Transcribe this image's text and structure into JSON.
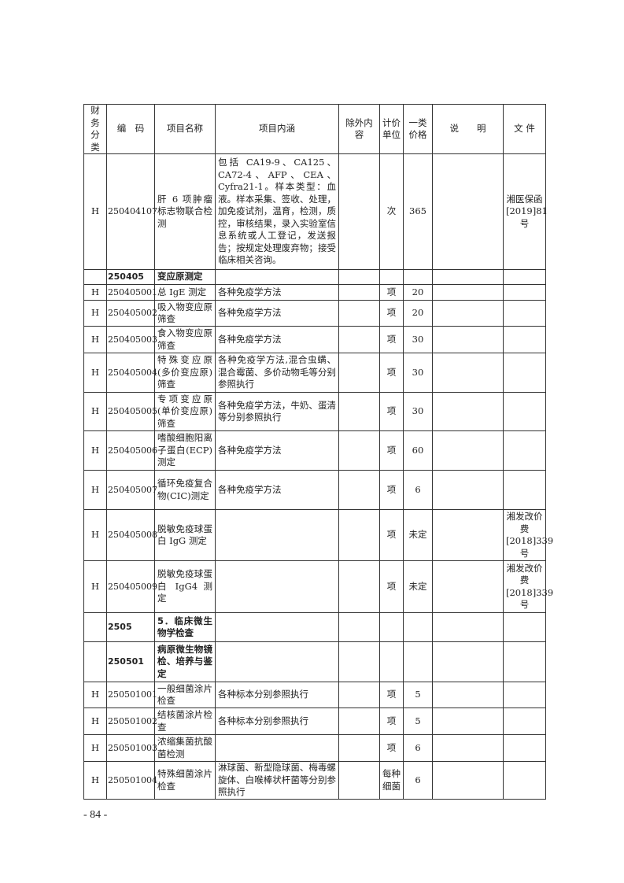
{
  "headers": [
    "财务分类",
    "编　码",
    "项目名称",
    "项目内涵",
    "除外内容",
    "计价单位",
    "一类价格",
    "说　　明",
    "文 件"
  ],
  "rows": [
    {
      "cat": "H",
      "code": "250404107",
      "name": "肝 6 项肿瘤标志物联合检测",
      "content": "包括 CA19-9、CA125、CA72-4、AFP、CEA、Cyfra21-1。样本类型：血液。样本采集、签收、处理，加免疫试剂，温育，检测，质控，审核结果，录入实验室信息系统或人工登记，发送报告；按规定处理废弃物；接受临床相关咨询。",
      "excl": "",
      "unit": "次",
      "price": "365",
      "note": "",
      "doc": "湘医保函[2019]81号"
    },
    {
      "cat": "",
      "code": "250405",
      "name": "变应原测定",
      "content": "",
      "excl": "",
      "unit": "",
      "price": "",
      "note": "",
      "doc": "",
      "bold": true
    },
    {
      "cat": "H",
      "code": "250405001",
      "name": "总 IgE 测定",
      "content": "各种免疫学方法",
      "excl": "",
      "unit": "项",
      "price": "20",
      "note": "",
      "doc": ""
    },
    {
      "cat": "H",
      "code": "250405002",
      "name": "吸入物变应原筛查",
      "content": "各种免疫学方法",
      "excl": "",
      "unit": "项",
      "price": "20",
      "note": "",
      "doc": ""
    },
    {
      "cat": "H",
      "code": "250405003",
      "name": "食入物变应原筛查",
      "content": "各种免疫学方法",
      "excl": "",
      "unit": "项",
      "price": "30",
      "note": "",
      "doc": ""
    },
    {
      "cat": "H",
      "code": "250405004",
      "name": "特殊变应原(多价变应原)筛查",
      "content": "各种免疫学方法,混合虫螨、混合霉菌、多价动物毛等分别参照执行",
      "excl": "",
      "unit": "项",
      "price": "30",
      "note": "",
      "doc": ""
    },
    {
      "cat": "H",
      "code": "250405005",
      "name": "专项变应原(单价变应原)筛查",
      "content": "各种免疫学方法，牛奶、蛋清等分别参照执行",
      "excl": "",
      "unit": "项",
      "price": "30",
      "note": "",
      "doc": ""
    },
    {
      "cat": "H",
      "code": "250405006",
      "name": "嗜酸细胞阳离子蛋白(ECP)测定",
      "content": "各种免疫学方法",
      "excl": "",
      "unit": "项",
      "price": "60",
      "note": "",
      "doc": ""
    },
    {
      "cat": "H",
      "code": "250405007",
      "name": "循环免疫复合物(CIC)测定",
      "content": "各种免疫学方法",
      "excl": "",
      "unit": "项",
      "price": "6",
      "note": "",
      "doc": ""
    },
    {
      "cat": "H",
      "code": "250405008",
      "name": "脱敏免疫球蛋白 IgG 测定",
      "content": "",
      "excl": "",
      "unit": "项",
      "price": "未定",
      "note": "",
      "doc": "湘发改价费[2018]339号"
    },
    {
      "cat": "H",
      "code": "250405009",
      "name": "脱敏免疫球蛋白 IgG4 测定",
      "content": "",
      "excl": "",
      "unit": "项",
      "price": "未定",
      "note": "",
      "doc": "湘发改价费[2018]339号"
    },
    {
      "cat": "",
      "code": "2505",
      "name": "5．临床微生物学检查",
      "content": "",
      "excl": "",
      "unit": "",
      "price": "",
      "note": "",
      "doc": "",
      "bold": true
    },
    {
      "cat": "",
      "code": "250501",
      "name": "病原微生物镜检、培养与鉴定",
      "content": "",
      "excl": "",
      "unit": "",
      "price": "",
      "note": "",
      "doc": "",
      "bold": true
    },
    {
      "cat": "H",
      "code": "250501001",
      "name": "一般细菌涂片检查",
      "content": "各种标本分别参照执行",
      "excl": "",
      "unit": "项",
      "price": "5",
      "note": "",
      "doc": ""
    },
    {
      "cat": "H",
      "code": "250501002",
      "name": "结核菌涂片检查",
      "content": "各种标本分别参照执行",
      "excl": "",
      "unit": "项",
      "price": "5",
      "note": "",
      "doc": ""
    },
    {
      "cat": "H",
      "code": "250501003",
      "name": "浓缩集菌抗酸菌检测",
      "content": "",
      "excl": "",
      "unit": "项",
      "price": "6",
      "note": "",
      "doc": ""
    },
    {
      "cat": "H",
      "code": "250501004",
      "name": "特殊细菌涂片检查",
      "content": "淋球菌、新型隐球菌、梅毒螺旋体、白喉棒状杆菌等分别参照执行",
      "excl": "",
      "unit": "每种细菌",
      "price": "6",
      "note": "",
      "doc": ""
    }
  ],
  "page_number": "- 84 -"
}
